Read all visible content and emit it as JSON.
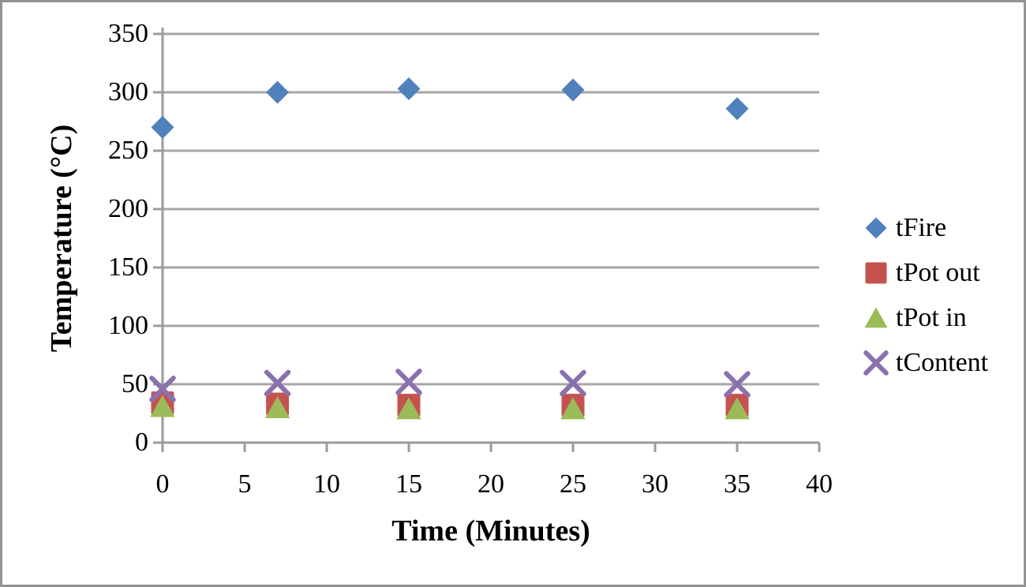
{
  "chart_data": {
    "type": "scatter",
    "title": "",
    "xlabel": "Time (Minutes)",
    "ylabel": "Temperature (°C)",
    "xlim": [
      0,
      40
    ],
    "ylim": [
      0,
      350
    ],
    "xticks": [
      0,
      5,
      10,
      15,
      20,
      25,
      30,
      35,
      40
    ],
    "yticks": [
      0,
      50,
      100,
      150,
      200,
      250,
      300,
      350
    ],
    "grid": "horizontal",
    "legend_position": "right",
    "x": [
      0,
      7,
      15,
      25,
      35
    ],
    "series": [
      {
        "name": "tFire",
        "marker": "diamond",
        "color": "#4F81BD",
        "values": [
          270,
          300,
          303,
          302,
          286
        ]
      },
      {
        "name": "tPot out",
        "marker": "square",
        "color": "#C4534F",
        "values": [
          34,
          33,
          32,
          32,
          32
        ]
      },
      {
        "name": "tPot in",
        "marker": "triangle",
        "color": "#9BBB59",
        "values": [
          31,
          30,
          29,
          29,
          29
        ]
      },
      {
        "name": "tContent",
        "marker": "x",
        "color": "#8971AE",
        "values": [
          46,
          51,
          52,
          51,
          50
        ]
      }
    ],
    "colors": {
      "gridline": "#A6A6A6",
      "axis": "#9B9B9B",
      "frame_border": "#939393",
      "text": "#000000"
    }
  }
}
